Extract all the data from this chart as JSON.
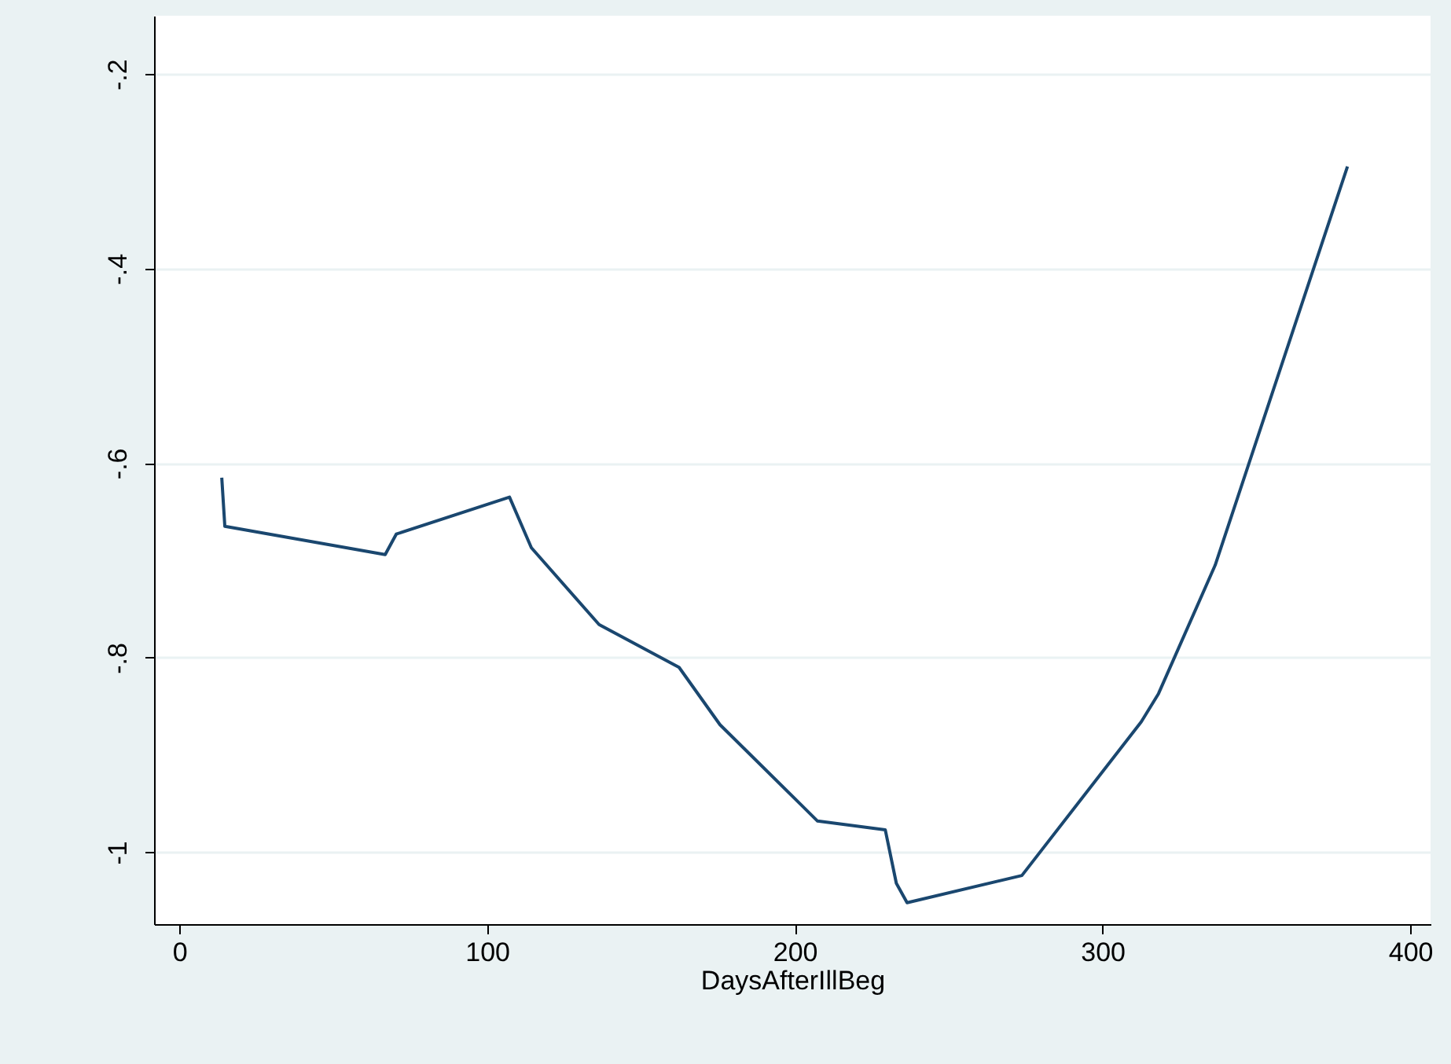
{
  "chart_data": {
    "type": "line",
    "xlabel": "DaysAfterIllBeg",
    "x": [
      13.8,
      14.8,
      66.9,
      70.5,
      107.3,
      114.4,
      136.4,
      162.4,
      175.7,
      207.4,
      229.4,
      233,
      236.5,
      273.8,
      312.6,
      318.2,
      336.6,
      379.6
    ],
    "series": [
      {
        "color": "#1a476f",
        "values": [
          -0.615,
          -0.665,
          -0.694,
          -0.673,
          -0.635,
          -0.687,
          -0.766,
          -0.81,
          -0.869,
          -0.968,
          -0.977,
          -1.032,
          -1.052,
          -1.024,
          -0.866,
          -0.837,
          -0.705,
          -0.295
        ]
      }
    ],
    "xlim": [
      -8.2,
      406.6
    ],
    "xticks": [
      0,
      100,
      200,
      300,
      400
    ],
    "ylim": [
      -1.074,
      -0.14
    ],
    "yticks": [
      {
        "value": -1,
        "label": "-1"
      },
      {
        "value": -0.8,
        "label": "-.8"
      },
      {
        "value": -0.6,
        "label": "-.6"
      },
      {
        "value": -0.4,
        "label": "-.4"
      },
      {
        "value": -0.2,
        "label": "-.2"
      }
    ],
    "grid": "y",
    "line_style": "solid"
  }
}
